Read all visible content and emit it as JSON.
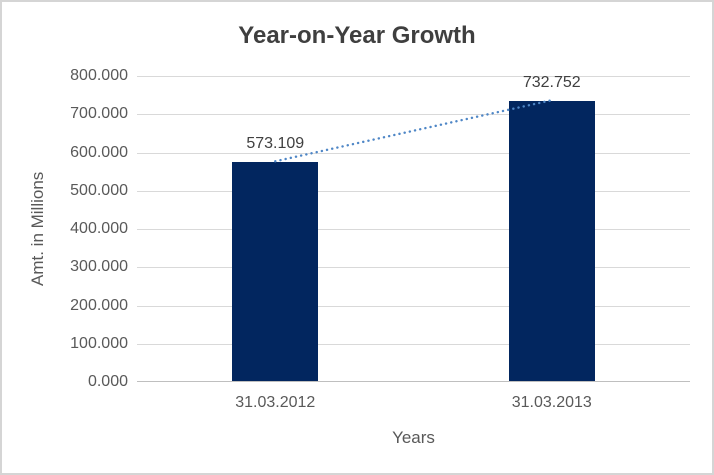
{
  "chart_data": {
    "type": "bar",
    "title": "Year-on-Year Growth",
    "xlabel": "Years",
    "ylabel": "Amt. in Millions",
    "categories": [
      "31.03.2012",
      "31.03.2013"
    ],
    "values": [
      573.109,
      732.752
    ],
    "value_labels": [
      "573.109",
      "732.752"
    ],
    "ylim": [
      0,
      800
    ],
    "ytick_step": 100,
    "ytick_labels": [
      "0.000",
      "100.000",
      "200.000",
      "300.000",
      "400.000",
      "500.000",
      "600.000",
      "700.000",
      "800.000"
    ],
    "grid": "horizontal-only",
    "legend": "none",
    "trendline": {
      "type": "linear",
      "style": "dotted",
      "color": "#4e86c6",
      "connects": "bar tops from 573.109 to 732.752"
    },
    "colors": {
      "bar_fill": "#02265f",
      "gridline": "#d9d9d9",
      "axis_line": "#bfbfbf",
      "tick_text": "#595959",
      "axis_title_text": "#595959",
      "data_label_text": "#404040",
      "title_text": "#3f3f3f",
      "frame_border": "#d5d5d5",
      "background": "#ffffff"
    }
  }
}
